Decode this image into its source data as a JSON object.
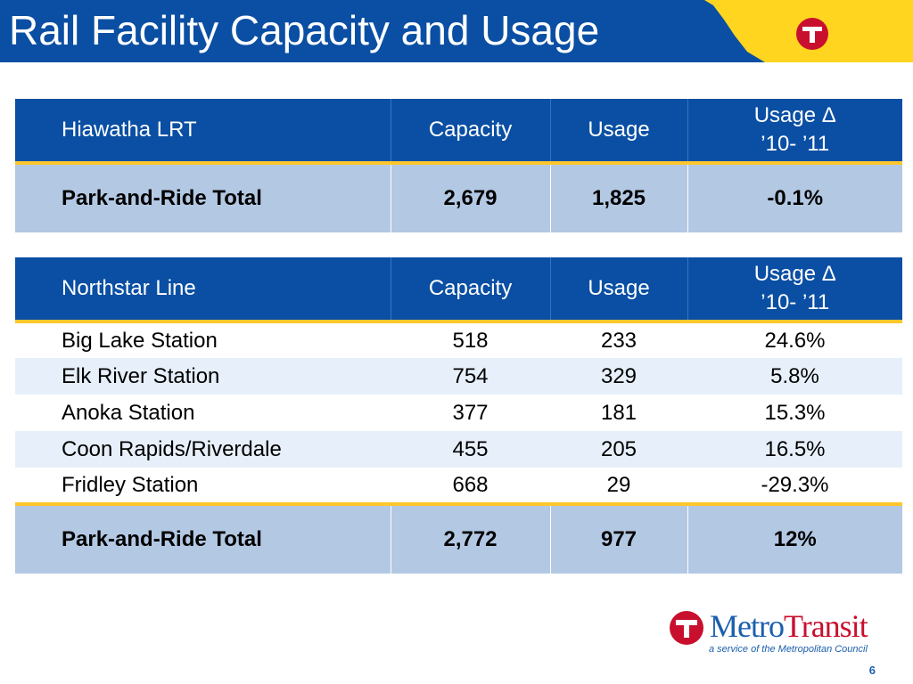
{
  "slide": {
    "title": "Rail Facility Capacity and Usage",
    "page_number": "6"
  },
  "colors": {
    "header_blue": "#0a4fa3",
    "header_yellow": "#ffd520",
    "accent_red": "#c8102e",
    "total_row_bg": "#b3c8e3",
    "alt_row_bg": "#e7f0fa"
  },
  "hiawatha_table": {
    "headers": [
      "Hiawatha LRT",
      "Capacity",
      "Usage",
      "Usage Δ",
      "’10- ’11"
    ],
    "total": {
      "label": "Park-and-Ride Total",
      "capacity": "2,679",
      "usage": "1,825",
      "change": "-0.1%"
    }
  },
  "northstar_table": {
    "headers": [
      "Northstar Line",
      "Capacity",
      "Usage",
      "Usage Δ",
      "’10- ’11"
    ],
    "rows": [
      {
        "label": "Big Lake Station",
        "capacity": "518",
        "usage": "233",
        "change": "24.6%"
      },
      {
        "label": "Elk River Station",
        "capacity": "754",
        "usage": "329",
        "change": "5.8%"
      },
      {
        "label": "Anoka Station",
        "capacity": "377",
        "usage": "181",
        "change": "15.3%"
      },
      {
        "label": "Coon Rapids/Riverdale",
        "capacity": "455",
        "usage": "205",
        "change": "16.5%"
      },
      {
        "label": "Fridley Station",
        "capacity": "668",
        "usage": "29",
        "change": "-29.3%"
      }
    ],
    "total": {
      "label": "Park-and-Ride Total",
      "capacity": "2,772",
      "usage": "977",
      "change": "12%"
    }
  },
  "logo": {
    "metro": "Metro",
    "transit": "Transit",
    "tagline": "a service of the Metropolitan Council",
    "icon": "metro-transit-t-icon"
  }
}
